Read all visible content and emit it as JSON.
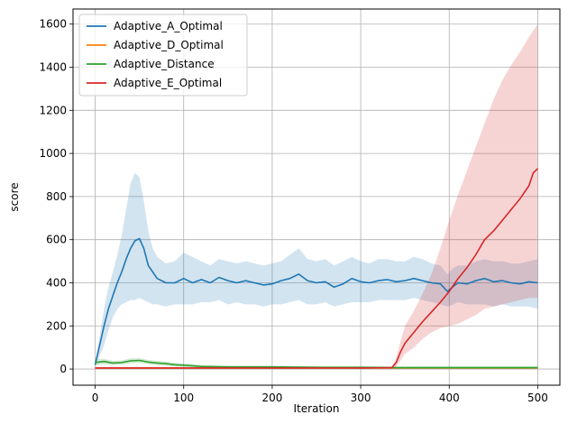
{
  "chart_data": {
    "type": "line",
    "xlabel": "Iteration",
    "ylabel": "score",
    "xlim": [
      -25,
      525
    ],
    "ylim": [
      -75,
      1670
    ],
    "xticks": [
      0,
      100,
      200,
      300,
      400,
      500
    ],
    "yticks": [
      0,
      200,
      400,
      600,
      800,
      1000,
      1200,
      1400,
      1600
    ],
    "grid": true,
    "legend_position": "top-left",
    "series": [
      {
        "name": "Adaptive_A_Optimal",
        "color": "#1f77b4",
        "band_color": "#1f77b4",
        "x": [
          0,
          5,
          10,
          15,
          20,
          25,
          30,
          35,
          40,
          45,
          50,
          55,
          60,
          65,
          70,
          80,
          90,
          100,
          110,
          120,
          130,
          140,
          150,
          160,
          170,
          180,
          190,
          200,
          210,
          220,
          230,
          240,
          250,
          260,
          270,
          280,
          290,
          300,
          310,
          320,
          330,
          340,
          350,
          360,
          370,
          380,
          390,
          398,
          405,
          410,
          420,
          430,
          440,
          450,
          460,
          470,
          480,
          490,
          500
        ],
        "mean": [
          20,
          110,
          200,
          280,
          340,
          400,
          450,
          510,
          560,
          595,
          605,
          560,
          480,
          450,
          420,
          400,
          400,
          420,
          400,
          415,
          400,
          425,
          410,
          400,
          410,
          400,
          390,
          395,
          410,
          420,
          440,
          410,
          400,
          405,
          380,
          395,
          420,
          405,
          400,
          410,
          415,
          405,
          410,
          420,
          410,
          400,
          395,
          360,
          385,
          400,
          395,
          410,
          420,
          405,
          410,
          400,
          395,
          405,
          400
        ],
        "lower": [
          10,
          60,
          110,
          180,
          240,
          280,
          300,
          310,
          320,
          320,
          330,
          320,
          310,
          300,
          300,
          290,
          300,
          300,
          300,
          310,
          310,
          320,
          300,
          310,
          300,
          300,
          290,
          300,
          300,
          310,
          320,
          300,
          300,
          310,
          290,
          300,
          310,
          310,
          310,
          320,
          320,
          320,
          320,
          330,
          320,
          310,
          300,
          290,
          300,
          310,
          300,
          300,
          300,
          290,
          300,
          290,
          290,
          290,
          280
        ],
        "upper": [
          30,
          150,
          280,
          380,
          450,
          530,
          620,
          740,
          860,
          910,
          890,
          780,
          640,
          560,
          520,
          490,
          500,
          540,
          520,
          500,
          480,
          510,
          500,
          490,
          500,
          490,
          480,
          490,
          500,
          530,
          560,
          510,
          500,
          510,
          480,
          500,
          520,
          500,
          490,
          510,
          510,
          500,
          500,
          520,
          510,
          490,
          480,
          440,
          470,
          480,
          480,
          500,
          510,
          500,
          500,
          490,
          490,
          500,
          510
        ]
      },
      {
        "name": "Adaptive_D_Optimal",
        "color": "#ff7f0e",
        "band_color": "#ff7f0e",
        "x": [
          0,
          100,
          200,
          300,
          400,
          500
        ],
        "mean": [
          5,
          5,
          5,
          5,
          5,
          5
        ],
        "lower": [
          2,
          2,
          2,
          2,
          2,
          2
        ],
        "upper": [
          8,
          8,
          8,
          8,
          8,
          8
        ]
      },
      {
        "name": "Adaptive_Distance",
        "color": "#2ca02c",
        "band_color": "#2ca02c",
        "x": [
          0,
          10,
          20,
          30,
          40,
          50,
          60,
          70,
          80,
          90,
          100,
          120,
          150,
          200,
          250,
          300,
          340,
          400,
          450,
          500
        ],
        "mean": [
          30,
          35,
          28,
          30,
          38,
          40,
          32,
          28,
          25,
          20,
          18,
          12,
          10,
          10,
          8,
          8,
          6,
          6,
          6,
          6
        ],
        "lower": [
          15,
          22,
          18,
          20,
          26,
          28,
          22,
          18,
          15,
          12,
          10,
          6,
          5,
          5,
          4,
          4,
          2,
          2,
          2,
          2
        ],
        "upper": [
          45,
          48,
          38,
          40,
          50,
          52,
          42,
          38,
          35,
          28,
          26,
          18,
          15,
          15,
          12,
          12,
          12,
          14,
          14,
          14
        ]
      },
      {
        "name": "Adaptive_E_Optimal",
        "color": "#d62728",
        "band_color": "#d62728",
        "x": [
          0,
          100,
          200,
          300,
          335,
          340,
          345,
          350,
          360,
          370,
          380,
          390,
          400,
          410,
          420,
          430,
          440,
          450,
          460,
          470,
          480,
          490,
          495,
          500
        ],
        "mean": [
          5,
          5,
          5,
          5,
          6,
          30,
          80,
          120,
          170,
          220,
          265,
          310,
          360,
          420,
          470,
          530,
          600,
          640,
          690,
          740,
          790,
          850,
          910,
          930
        ],
        "lower": [
          2,
          2,
          2,
          2,
          2,
          10,
          40,
          70,
          100,
          140,
          170,
          190,
          200,
          210,
          230,
          250,
          280,
          290,
          300,
          310,
          320,
          330,
          330,
          330
        ],
        "upper": [
          8,
          8,
          8,
          8,
          10,
          50,
          130,
          200,
          270,
          350,
          440,
          560,
          690,
          810,
          920,
          1030,
          1140,
          1250,
          1340,
          1410,
          1470,
          1540,
          1570,
          1600
        ]
      }
    ]
  }
}
